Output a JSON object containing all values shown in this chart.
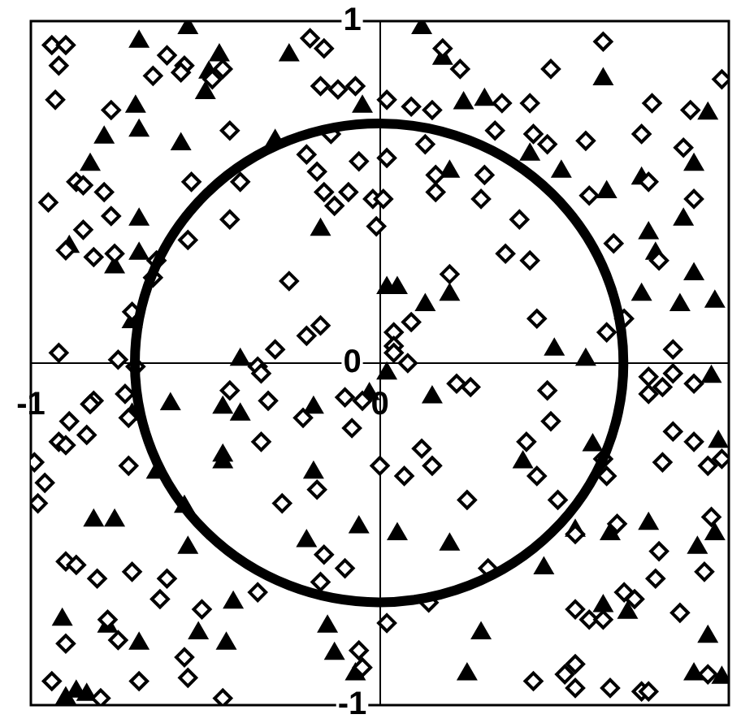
{
  "chart_data": {
    "type": "scatter",
    "xlim": [
      -1,
      1
    ],
    "ylim": [
      -1,
      1
    ],
    "xticks": [
      -1,
      0
    ],
    "yticks": [
      -1,
      0,
      1
    ],
    "series": [
      {
        "marker": "diamond",
        "color": "#000000",
        "x": [
          -0.94,
          -0.9,
          -0.92,
          -0.93,
          -0.77,
          -0.61,
          -0.56,
          -0.57,
          -0.65,
          -0.45,
          -0.48,
          -0.43,
          -0.2,
          -0.16,
          -0.17,
          -0.12,
          -0.07,
          -0.14,
          -0.21,
          -0.18,
          -0.06,
          -0.16,
          -0.09,
          -0.13,
          -0.02,
          -0.01,
          -0.87,
          -0.85,
          -0.79,
          -0.95,
          -0.77,
          -0.54,
          -0.4,
          -0.43,
          -0.55,
          -0.85,
          -0.9,
          -0.82,
          -0.76,
          -0.64,
          -0.65,
          -0.26,
          -0.21,
          -0.17,
          -0.3,
          -0.71,
          -0.92,
          -0.75,
          -0.7,
          -0.35,
          0.18,
          0.23,
          0.02,
          0.09,
          0.15,
          0.35,
          0.43,
          0.49,
          0.64,
          0.78,
          0.89,
          0.98,
          0.33,
          0.44,
          0.48,
          0.59,
          0.75,
          0.87,
          0.13,
          0.02,
          0.16,
          0.16,
          0.3,
          0.29,
          0.01,
          0.4,
          0.36,
          0.43,
          0.6,
          0.77,
          0.9,
          0.67,
          0.8,
          0.2,
          0.09,
          0.04,
          0.04,
          0.08,
          0.45,
          0.65,
          0.7,
          0.84,
          -0.73,
          -0.82,
          -0.83,
          -0.89,
          -0.92,
          -0.9,
          -0.84,
          -0.72,
          -0.99,
          -0.96,
          -0.98,
          -0.72,
          -0.43,
          -0.32,
          -0.34,
          -0.28,
          -0.22,
          -0.18,
          -0.16,
          -0.1,
          -0.17,
          -0.35,
          -0.61,
          -0.63,
          -0.71,
          -0.81,
          -0.9,
          -0.87,
          -0.51,
          -0.78,
          -0.75,
          -0.9,
          -0.56,
          -0.55,
          -0.69,
          -0.94,
          -0.8,
          -0.45,
          -0.08,
          -0.05,
          -0.1,
          0,
          -0.34,
          0.04,
          0.22,
          0.26,
          0.48,
          0.49,
          0.42,
          0.45,
          0.51,
          0.65,
          0.64,
          0.77,
          0.77,
          0.81,
          0.84,
          0.9,
          0.84,
          0.9,
          0.81,
          0.94,
          0.98,
          0.95,
          0.93,
          0.8,
          0.79,
          0.68,
          0.56,
          0.12,
          0.15,
          0.07,
          0.25,
          0.31,
          0.14,
          0.02,
          0.56,
          0.6,
          0.64,
          0.7,
          0.73,
          0.86,
          0.94,
          -0.06,
          -0.05,
          0.44,
          0.56,
          0.53,
          0.56,
          0.66,
          0.75,
          0.77
        ],
        "values": [
          0.93,
          0.93,
          0.87,
          0.77,
          0.74,
          0.9,
          0.87,
          0.85,
          0.84,
          0.86,
          0.83,
          0.68,
          0.95,
          0.92,
          0.81,
          0.8,
          0.81,
          0.67,
          0.61,
          0.56,
          0.59,
          0.5,
          0.5,
          0.46,
          0.48,
          0.4,
          0.53,
          0.52,
          0.5,
          0.47,
          0.43,
          0.53,
          0.53,
          0.42,
          0.36,
          0.39,
          0.33,
          0.31,
          0.32,
          0.3,
          0.25,
          0.24,
          0.08,
          0.11,
          0.04,
          0.15,
          0.03,
          0.01,
          -0.01,
          -0.01,
          0.92,
          0.86,
          0.77,
          0.75,
          0.74,
          0.76,
          0.76,
          0.86,
          0.94,
          0.76,
          0.74,
          0.83,
          0.68,
          0.67,
          0.64,
          0.65,
          0.67,
          0.63,
          0.64,
          0.6,
          0.55,
          0.5,
          0.55,
          0.48,
          0.48,
          0.42,
          0.32,
          0.3,
          0.49,
          0.53,
          0.48,
          0.35,
          0.3,
          0.26,
          0.12,
          0.09,
          0.05,
          0,
          0.13,
          0.09,
          0.13,
          0.04,
          -0.09,
          -0.11,
          -0.12,
          -0.17,
          -0.23,
          -0.24,
          -0.21,
          -0.16,
          -0.29,
          -0.35,
          -0.41,
          -0.3,
          -0.08,
          -0.11,
          -0.23,
          -0.41,
          -0.16,
          -0.37,
          -0.56,
          -0.6,
          -0.64,
          -0.67,
          -0.63,
          -0.69,
          -0.61,
          -0.63,
          -0.58,
          -0.59,
          -0.72,
          -0.75,
          -0.81,
          -0.82,
          -0.86,
          -0.92,
          -0.93,
          -0.93,
          -0.98,
          -0.98,
          -0.19,
          -0.11,
          -0.1,
          -0.3,
          -0.03,
          0.03,
          -0.06,
          -0.07,
          -0.08,
          -0.17,
          -0.23,
          -0.33,
          -0.4,
          -0.33,
          -0.28,
          -0.04,
          -0.09,
          -0.07,
          -0.03,
          -0.06,
          -0.2,
          -0.23,
          -0.29,
          -0.3,
          -0.28,
          -0.45,
          -0.61,
          -0.55,
          -0.63,
          -0.47,
          -0.5,
          -0.25,
          -0.3,
          -0.33,
          -0.4,
          -0.6,
          -0.7,
          -0.76,
          -0.72,
          -0.75,
          -0.75,
          -0.67,
          -0.69,
          -0.73,
          -0.91,
          -0.84,
          -0.89,
          -0.93,
          -0.88,
          -0.91,
          -0.95,
          -0.95,
          -0.96,
          -0.96
        ]
      },
      {
        "marker": "triangle",
        "color": "#000000",
        "x": [
          -0.69,
          -0.55,
          -0.26,
          -0.46,
          -0.5,
          -0.7,
          -0.69,
          -0.79,
          -0.57,
          -0.83,
          -0.69,
          -0.17,
          -0.89,
          -0.76,
          -0.69,
          -0.71,
          -0.4,
          -0.3,
          -0.05,
          -0.49,
          0.12,
          0.18,
          0.24,
          0.3,
          0.64,
          0.94,
          0.43,
          0.52,
          0.65,
          0.75,
          0.9,
          0.77,
          0.87,
          0.79,
          0.9,
          0.75,
          0.86,
          0.96,
          0.2,
          0.02,
          0.05,
          0.13,
          0.2,
          0.5,
          0.59,
          -0.6,
          -0.45,
          -0.4,
          -0.19,
          -0.03,
          -0.71,
          -0.45,
          -0.45,
          -0.19,
          -0.64,
          -0.56,
          -0.82,
          -0.76,
          -0.55,
          -0.21,
          -0.06,
          -0.42,
          -0.44,
          -0.52,
          -0.69,
          -0.78,
          -0.91,
          -0.15,
          -0.13,
          -0.07,
          -0.9,
          -0.87,
          -0.84,
          0.02,
          0.15,
          0.95,
          0.61,
          0.41,
          0.56,
          0.66,
          0.77,
          0.91,
          0.97,
          0.96,
          0.47,
          0.05,
          0.2,
          0.64,
          0.71,
          0.94,
          0.29,
          0.25,
          0.9,
          0.98
        ],
        "values": [
          0.94,
          0.98,
          0.9,
          0.9,
          0.79,
          0.75,
          0.68,
          0.66,
          0.64,
          0.58,
          0.42,
          0.39,
          0.34,
          0.28,
          0.32,
          0.12,
          0.01,
          0.65,
          0.75,
          0.85,
          0.98,
          0.89,
          0.76,
          0.77,
          0.83,
          0.73,
          0.61,
          0.56,
          0.5,
          0.54,
          0.58,
          0.38,
          0.42,
          0.32,
          0.26,
          0.2,
          0.17,
          0.18,
          0.56,
          0.22,
          0.22,
          0.17,
          0.2,
          0.04,
          0.01,
          -0.12,
          -0.13,
          -0.15,
          -0.13,
          -0.09,
          -0.15,
          -0.27,
          -0.29,
          -0.32,
          -0.32,
          -0.42,
          -0.46,
          -0.46,
          -0.54,
          -0.52,
          -0.48,
          -0.7,
          -0.82,
          -0.79,
          -0.82,
          -0.77,
          -0.75,
          -0.77,
          -0.85,
          -0.91,
          -0.98,
          -0.96,
          -0.97,
          -0.03,
          -0.1,
          -0.04,
          -0.24,
          -0.29,
          -0.49,
          -0.5,
          -0.47,
          -0.54,
          -0.23,
          -0.5,
          -0.6,
          -0.5,
          -0.53,
          -0.71,
          -0.73,
          -0.8,
          -0.79,
          -0.91,
          -0.91,
          -0.92
        ]
      }
    ]
  }
}
